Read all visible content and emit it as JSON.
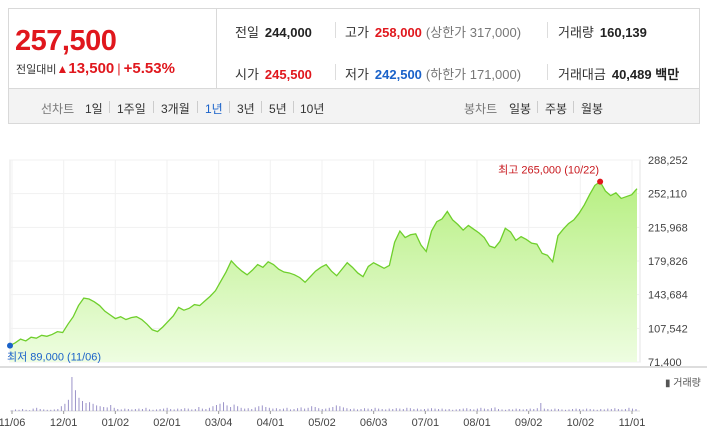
{
  "summary": {
    "price": "257,500",
    "change_label": "전일대비",
    "change_arrow": "▲",
    "change_amount": "13,500",
    "change_sep": "|",
    "change_percent": "+5.53%",
    "prev_close_label": "전일",
    "prev_close": "244,000",
    "high_label": "고가",
    "high": "258,000",
    "upper_limit": "(상한가 317,000)",
    "volume_label": "거래량",
    "volume": "160,139",
    "open_label": "시가",
    "open": "245,500",
    "low_label": "저가",
    "low": "242,500",
    "lower_limit": "(하한가 171,000)",
    "turnover_label": "거래대금",
    "turnover": "40,489",
    "turnover_unit": "백만"
  },
  "period_bar": {
    "line_label": "선차트",
    "line_options": [
      "1일",
      "1주일",
      "3개월",
      "1년",
      "3년",
      "5년",
      "10년"
    ],
    "active_option": "1년",
    "candle_label": "봉차트",
    "candle_options": [
      "일봉",
      "주봉",
      "월봉"
    ]
  },
  "colors": {
    "accent_red": "#e0171d",
    "accent_blue": "#1a62c9",
    "line_green": "#6fcf2c",
    "fill_green": "#c6f29a"
  },
  "chart_data": {
    "type": "area",
    "x_tick_labels": [
      "11/06",
      "12/01",
      "01/02",
      "02/01",
      "03/04",
      "04/01",
      "05/02",
      "06/03",
      "07/01",
      "08/01",
      "09/02",
      "10/02",
      "11/01"
    ],
    "y_tick_labels": [
      "288,252",
      "252,110",
      "215,968",
      "179,826",
      "143,684",
      "107,542",
      "71,400"
    ],
    "ylim": [
      71400,
      288252
    ],
    "max_annotation": "최고 265,000 (10/22)",
    "min_annotation": "최저 89,000 (11/06)",
    "volume_legend": "거래량",
    "values": [
      89000,
      92000,
      96000,
      94000,
      98000,
      97000,
      100000,
      99000,
      101000,
      104000,
      103000,
      112000,
      120000,
      132000,
      140000,
      139000,
      136000,
      132000,
      126000,
      122000,
      118000,
      120000,
      117000,
      119000,
      120000,
      117000,
      112000,
      106000,
      104000,
      109000,
      115000,
      121000,
      130000,
      127000,
      129000,
      133000,
      132000,
      137000,
      142000,
      148000,
      158000,
      168000,
      180000,
      174000,
      169000,
      165000,
      170000,
      176000,
      173000,
      179000,
      176000,
      171000,
      168000,
      167000,
      165000,
      162000,
      157000,
      163000,
      169000,
      173000,
      176000,
      169000,
      164000,
      171000,
      178000,
      173000,
      167000,
      163000,
      174000,
      178000,
      175000,
      172000,
      175000,
      200000,
      212000,
      205000,
      208000,
      209000,
      197000,
      190000,
      212000,
      222000,
      225000,
      233000,
      224000,
      219000,
      213000,
      218000,
      214000,
      210000,
      205000,
      196000,
      194000,
      201000,
      215000,
      211000,
      202000,
      206000,
      203000,
      199000,
      198000,
      188000,
      186000,
      179000,
      207000,
      214000,
      220000,
      224000,
      231000,
      240000,
      251000,
      261000,
      265000,
      255000,
      250000,
      253000,
      247000,
      249000,
      251000,
      257500
    ],
    "volume_bars": [
      0.02,
      0.04,
      0.03,
      0.05,
      0.03,
      0.02,
      0.06,
      0.08,
      0.05,
      0.04,
      0.03,
      0.03,
      0.04,
      0.05,
      0.12,
      0.18,
      0.28,
      0.85,
      0.52,
      0.33,
      0.25,
      0.2,
      0.22,
      0.18,
      0.14,
      0.12,
      0.1,
      0.09,
      0.15,
      0.08,
      0.05,
      0.04,
      0.06,
      0.05,
      0.04,
      0.05,
      0.06,
      0.05,
      0.08,
      0.04,
      0.03,
      0.04,
      0.05,
      0.06,
      0.08,
      0.05,
      0.04,
      0.06,
      0.05,
      0.07,
      0.06,
      0.04,
      0.05,
      0.1,
      0.06,
      0.05,
      0.08,
      0.12,
      0.15,
      0.18,
      0.22,
      0.14,
      0.1,
      0.16,
      0.12,
      0.08,
      0.06,
      0.07,
      0.05,
      0.09,
      0.12,
      0.14,
      0.1,
      0.08,
      0.06,
      0.07,
      0.05,
      0.06,
      0.08,
      0.04,
      0.05,
      0.07,
      0.09,
      0.06,
      0.08,
      0.12,
      0.1,
      0.07,
      0.05,
      0.06,
      0.08,
      0.1,
      0.14,
      0.12,
      0.09,
      0.07,
      0.05,
      0.06,
      0.04,
      0.05,
      0.07,
      0.06,
      0.05,
      0.08,
      0.06,
      0.05,
      0.04,
      0.06,
      0.05,
      0.07,
      0.06,
      0.05,
      0.08,
      0.07,
      0.05,
      0.06,
      0.04,
      0.05,
      0.06,
      0.07,
      0.06,
      0.05,
      0.06,
      0.04,
      0.05,
      0.03,
      0.04,
      0.05,
      0.06,
      0.07,
      0.05,
      0.04,
      0.06,
      0.08,
      0.06,
      0.05,
      0.07,
      0.09,
      0.05,
      0.04,
      0.03,
      0.05,
      0.04,
      0.06,
      0.05,
      0.04,
      0.05,
      0.06,
      0.05,
      0.07,
      0.2,
      0.06,
      0.05,
      0.04,
      0.06,
      0.05,
      0.04,
      0.03,
      0.04,
      0.05,
      0.06,
      0.05,
      0.04,
      0.06,
      0.05,
      0.04,
      0.03,
      0.05,
      0.04,
      0.06,
      0.05,
      0.07,
      0.05,
      0.04,
      0.05,
      0.08,
      0.06,
      0.05
    ]
  }
}
